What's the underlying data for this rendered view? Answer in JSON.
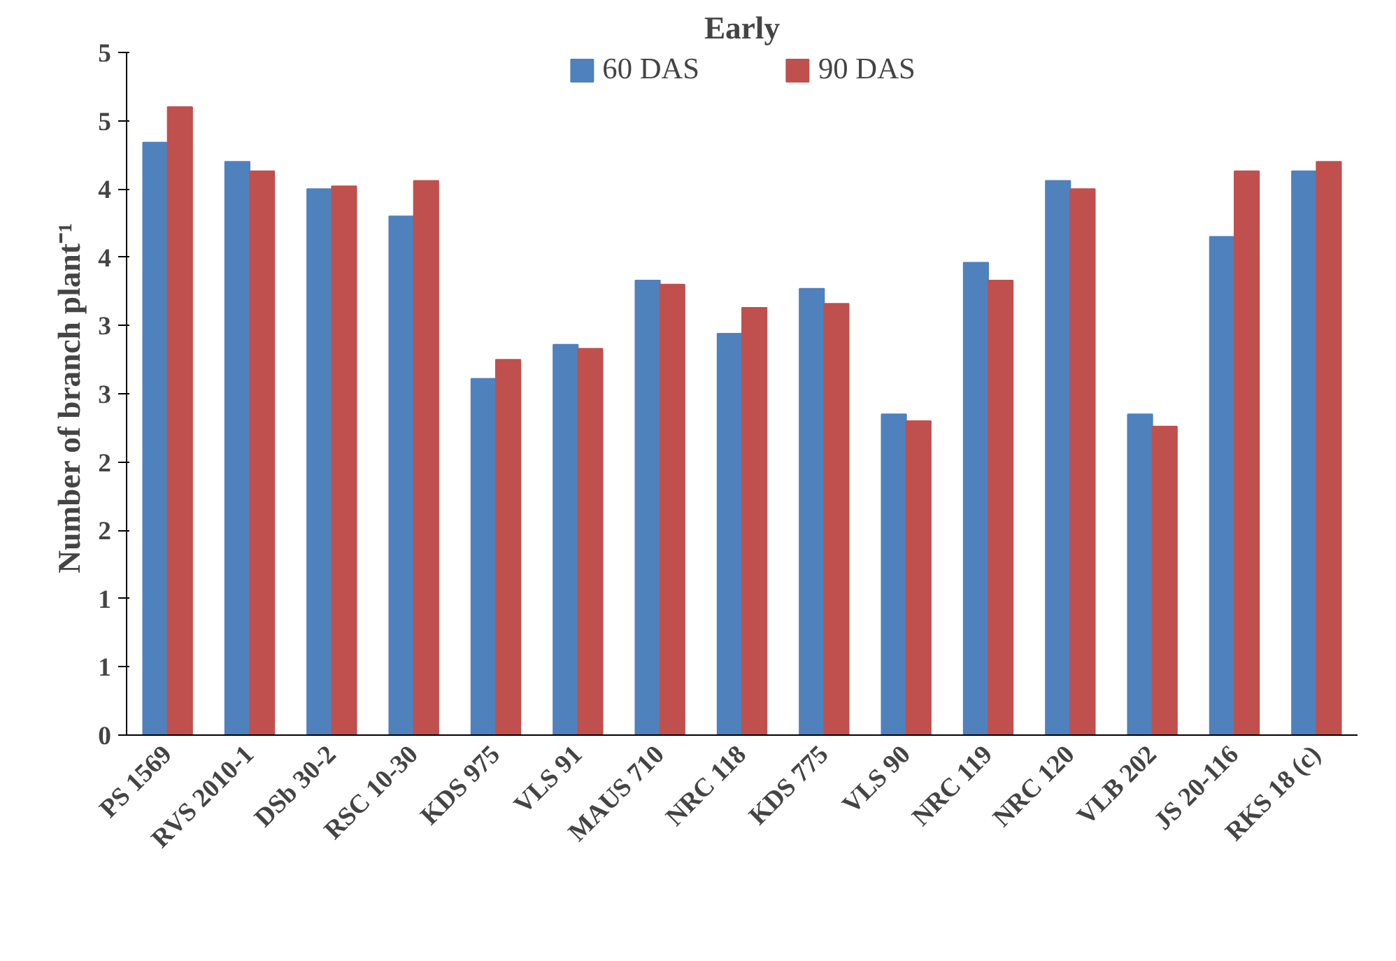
{
  "chart_data": {
    "type": "bar",
    "title": "Early",
    "ylabel": "Number of branch  plant⁻¹",
    "categories": [
      "PS 1569",
      "RVS 2010-1",
      "DSb 30-2",
      "RSC 10-30",
      "KDS 975",
      "VLS 91",
      "MAUS 710",
      "NRC 118",
      "KDS 775",
      "VLS 90",
      "NRC 119",
      "NRC 120",
      "VLB 202",
      "JS 20-116",
      "RKS 18 (c)"
    ],
    "series": [
      {
        "name": "60 DAS",
        "color": "#4f81bd",
        "values": [
          4.34,
          4.2,
          4.0,
          3.8,
          2.61,
          2.86,
          3.33,
          2.94,
          3.27,
          2.35,
          3.46,
          4.06,
          2.35,
          3.65,
          4.13
        ]
      },
      {
        "name": "90 DAS",
        "color": "#c0504d",
        "values": [
          4.6,
          4.13,
          4.02,
          4.06,
          2.75,
          2.83,
          3.3,
          3.13,
          3.16,
          2.3,
          3.33,
          4.0,
          2.26,
          4.13,
          4.2
        ]
      }
    ],
    "ylim": [
      0,
      5
    ],
    "yticks": [
      0,
      {
        "value": 0.5,
        "label": "1"
      },
      {
        "value": 1,
        "label": "1"
      },
      {
        "value": 1.5,
        "label": "2"
      },
      {
        "value": 2,
        "label": "2"
      },
      {
        "value": 2.5,
        "label": "3"
      },
      {
        "value": 3,
        "label": "3"
      },
      {
        "value": 3.5,
        "label": "4"
      },
      {
        "value": 4,
        "label": "4"
      },
      {
        "value": 4.5,
        "label": "5"
      },
      {
        "value": 5,
        "label": "5"
      }
    ],
    "grid": false,
    "legend": "top"
  }
}
